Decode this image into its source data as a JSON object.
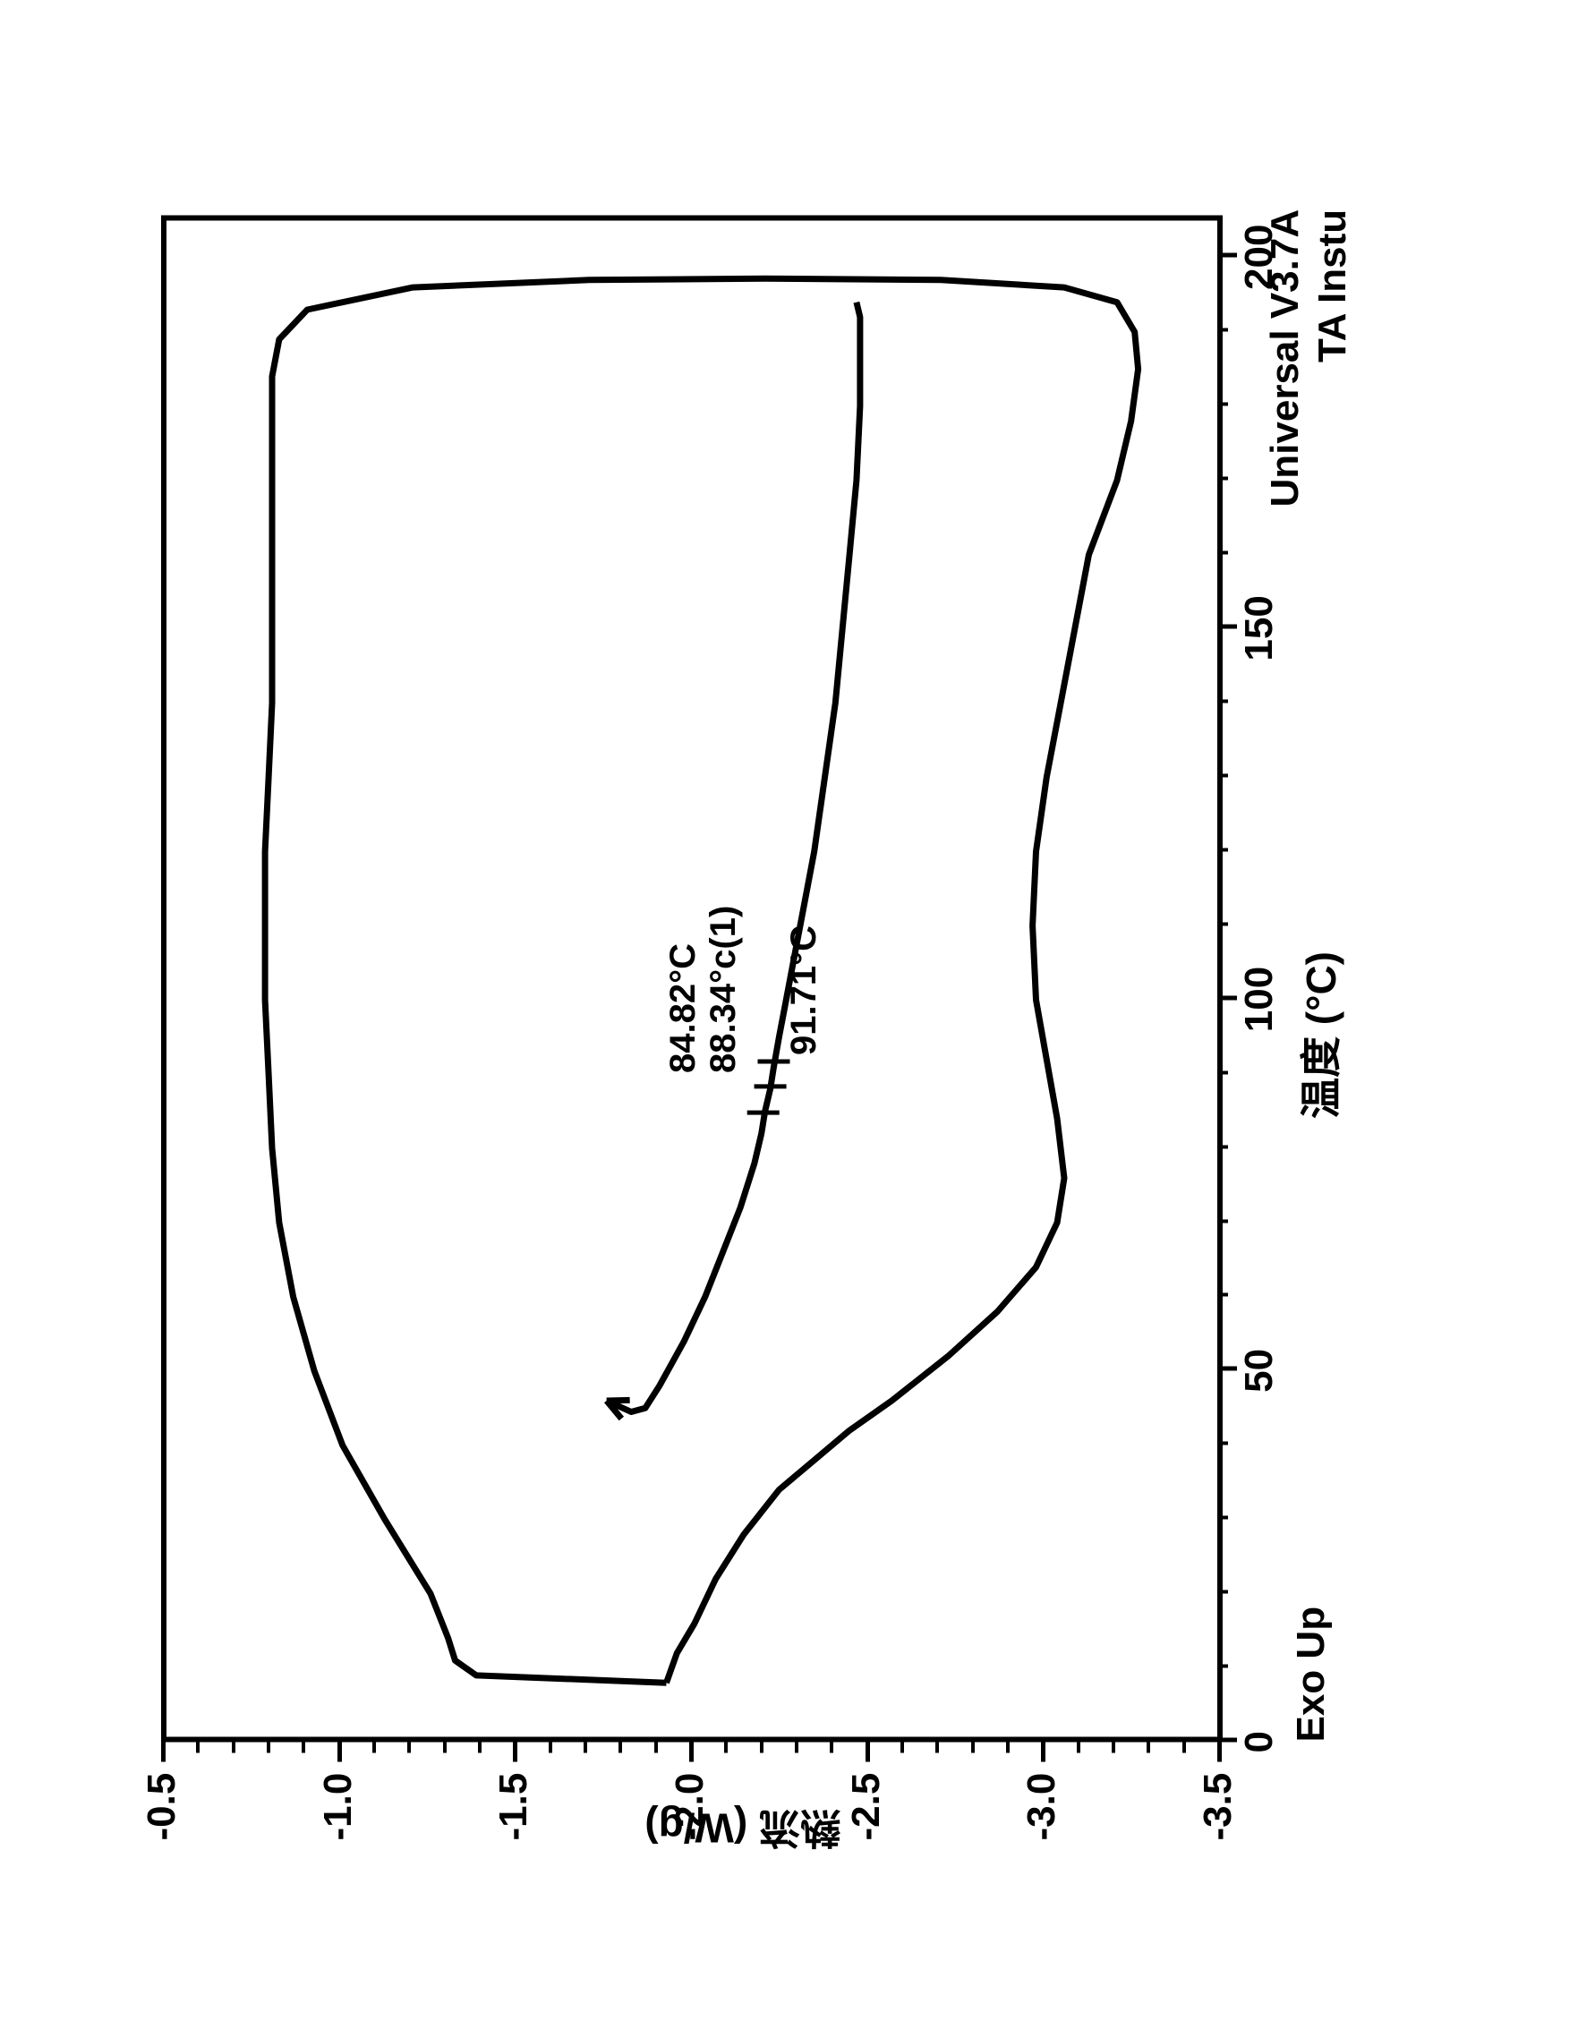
{
  "chart": {
    "type": "line",
    "background_color": "#ffffff",
    "stroke_color": "#000000",
    "stroke_width": 7,
    "axis_width": 6,
    "x_axis": {
      "label": "温度 (°C)",
      "min": 0,
      "max": 205,
      "ticks": [
        0,
        50,
        100,
        150,
        200
      ],
      "tick_fontsize": 44,
      "label_fontsize": 46
    },
    "y_axis": {
      "label": "熱流 (W/g)",
      "min": -3.5,
      "max": -0.5,
      "ticks": [
        -0.5,
        -1.0,
        -1.5,
        -2.0,
        -2.5,
        -3.0,
        -3.5
      ],
      "tick_fontsize": 44,
      "label_fontsize": 46
    },
    "exo_label": "Exo Up",
    "footer_line1": "Universal V3.7A",
    "footer_line2": "TA Instu",
    "annotations": {
      "a1": "84.82°C",
      "a2": "88.34°c(1)",
      "a3": "91.71°C"
    },
    "series_outer": [
      [
        8,
        -1.92
      ],
      [
        9,
        -1.38
      ],
      [
        11,
        -1.32
      ],
      [
        14,
        -1.3
      ],
      [
        20,
        -1.25
      ],
      [
        30,
        -1.12
      ],
      [
        40,
        -1.0
      ],
      [
        50,
        -0.92
      ],
      [
        60,
        -0.86
      ],
      [
        70,
        -0.82
      ],
      [
        80,
        -0.8
      ],
      [
        90,
        -0.79
      ],
      [
        100,
        -0.78
      ],
      [
        110,
        -0.78
      ],
      [
        120,
        -0.78
      ],
      [
        130,
        -0.79
      ],
      [
        140,
        -0.8
      ],
      [
        150,
        -0.8
      ],
      [
        160,
        -0.8
      ],
      [
        170,
        -0.8
      ],
      [
        178,
        -0.8
      ],
      [
        184,
        -0.8
      ],
      [
        189,
        -0.82
      ],
      [
        193,
        -0.9
      ],
      [
        196,
        -1.2
      ],
      [
        197,
        -1.7
      ],
      [
        197.2,
        -2.2
      ],
      [
        197,
        -2.7
      ],
      [
        196,
        -3.05
      ],
      [
        194,
        -3.2
      ],
      [
        190,
        -3.25
      ],
      [
        185,
        -3.26
      ],
      [
        178,
        -3.24
      ],
      [
        170,
        -3.2
      ],
      [
        160,
        -3.12
      ],
      [
        150,
        -3.08
      ],
      [
        140,
        -3.04
      ],
      [
        130,
        -3.0
      ],
      [
        120,
        -2.97
      ],
      [
        110,
        -2.96
      ],
      [
        100,
        -2.97
      ],
      [
        92,
        -3.0
      ],
      [
        84,
        -3.03
      ],
      [
        76,
        -3.05
      ],
      [
        70,
        -3.03
      ],
      [
        64,
        -2.97
      ],
      [
        58,
        -2.86
      ],
      [
        52,
        -2.72
      ],
      [
        46,
        -2.56
      ],
      [
        42,
        -2.44
      ],
      [
        38,
        -2.34
      ],
      [
        34,
        -2.24
      ],
      [
        28,
        -2.14
      ],
      [
        22,
        -2.06
      ],
      [
        16,
        -2.0
      ],
      [
        12,
        -1.95
      ],
      [
        8,
        -1.92
      ]
    ],
    "series_inner": [
      [
        46,
        -1.75
      ],
      [
        44.5,
        -1.82
      ],
      [
        45,
        -1.86
      ],
      [
        48,
        -1.9
      ],
      [
        54,
        -1.97
      ],
      [
        60,
        -2.03
      ],
      [
        66,
        -2.08
      ],
      [
        72,
        -2.13
      ],
      [
        78,
        -2.17
      ],
      [
        82,
        -2.19
      ],
      [
        85,
        -2.2
      ],
      [
        88,
        -2.215
      ],
      [
        91,
        -2.225
      ],
      [
        95,
        -2.24
      ],
      [
        100,
        -2.26
      ],
      [
        110,
        -2.3
      ],
      [
        120,
        -2.34
      ],
      [
        130,
        -2.37
      ],
      [
        140,
        -2.4
      ],
      [
        150,
        -2.42
      ],
      [
        160,
        -2.44
      ],
      [
        170,
        -2.46
      ],
      [
        180,
        -2.47
      ],
      [
        188,
        -2.47
      ],
      [
        192,
        -2.47
      ],
      [
        194,
        -2.46
      ]
    ],
    "tg_marks": [
      [
        84.82,
        -2.195
      ],
      [
        88.34,
        -2.215
      ],
      [
        91.71,
        -2.225
      ]
    ]
  }
}
